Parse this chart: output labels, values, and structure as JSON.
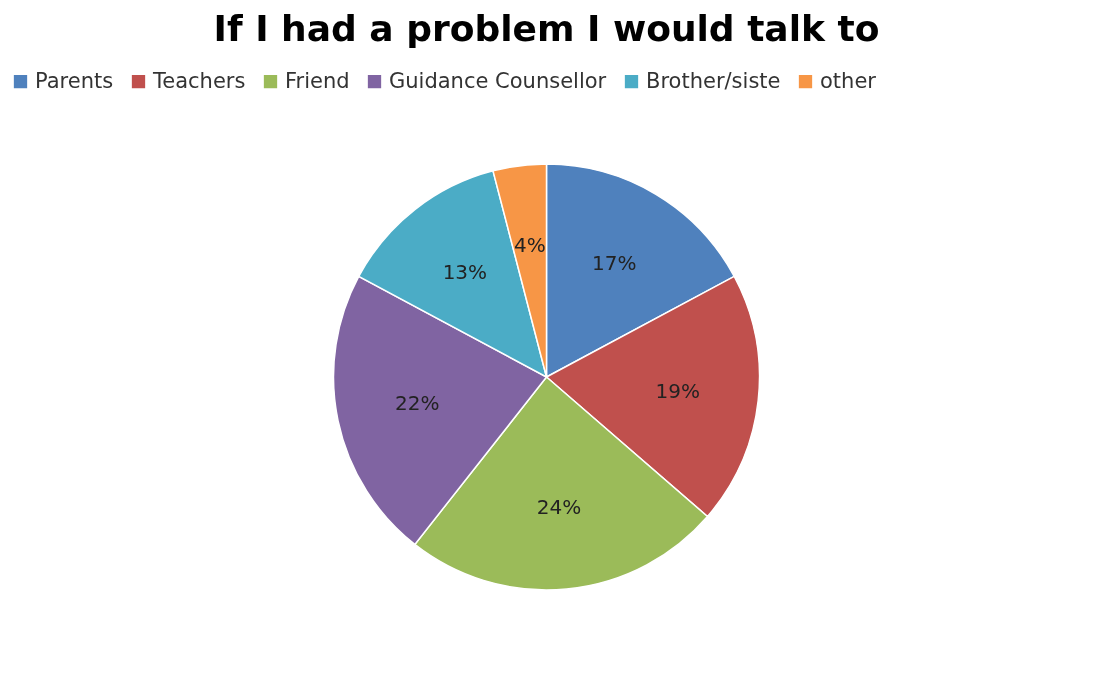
{
  "chart_data": {
    "type": "pie",
    "title": "If I had a problem I would talk to",
    "categories": [
      "Parents",
      "Teachers",
      "Friend",
      "Guidance Counsellor",
      "Brother/siste",
      "other"
    ],
    "values": [
      17,
      19,
      24,
      22,
      13,
      4
    ],
    "value_labels": [
      "17%",
      "19%",
      "24%",
      "22%",
      "13%",
      "4%"
    ],
    "colors": [
      "#4f81bd",
      "#c0504d",
      "#9bbb59",
      "#8064a2",
      "#4bacc6",
      "#f79646"
    ],
    "legend": "top"
  }
}
